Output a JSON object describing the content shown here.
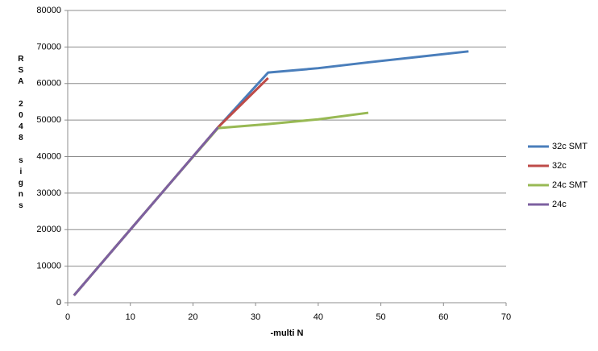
{
  "chart_data": {
    "type": "line",
    "x_label": "-multi N",
    "y_label": "RSA 2048 signs",
    "xlim": [
      0,
      70
    ],
    "xticks": [
      0,
      10,
      20,
      30,
      40,
      50,
      60,
      70
    ],
    "ylim": [
      0,
      80000
    ],
    "yticks": [
      0,
      10000,
      20000,
      30000,
      40000,
      50000,
      60000,
      70000,
      80000
    ],
    "grid": true,
    "legend": "right",
    "series": [
      {
        "name": "32c SMT",
        "color": "#4a7ebb",
        "x": [
          1,
          2,
          4,
          8,
          16,
          24,
          32,
          40,
          48,
          56,
          64
        ],
        "values": [
          2000,
          4000,
          8000,
          16000,
          32000,
          48000,
          63000,
          64200,
          65800,
          67300,
          68800
        ]
      },
      {
        "name": "32c",
        "color": "#be4b48",
        "x": [
          1,
          2,
          4,
          8,
          16,
          24,
          32
        ],
        "values": [
          2000,
          4000,
          8000,
          16000,
          32000,
          48000,
          61500
        ]
      },
      {
        "name": "24c SMT",
        "color": "#98b954",
        "x": [
          1,
          2,
          4,
          8,
          16,
          24,
          32,
          40,
          48
        ],
        "values": [
          2000,
          4000,
          8000,
          16000,
          32000,
          47800,
          48900,
          50200,
          52000
        ]
      },
      {
        "name": "24c",
        "color": "#7d60a0",
        "x": [
          1,
          2,
          4,
          8,
          16,
          24
        ],
        "values": [
          2000,
          4000,
          8000,
          16000,
          32000,
          48000
        ]
      }
    ]
  }
}
